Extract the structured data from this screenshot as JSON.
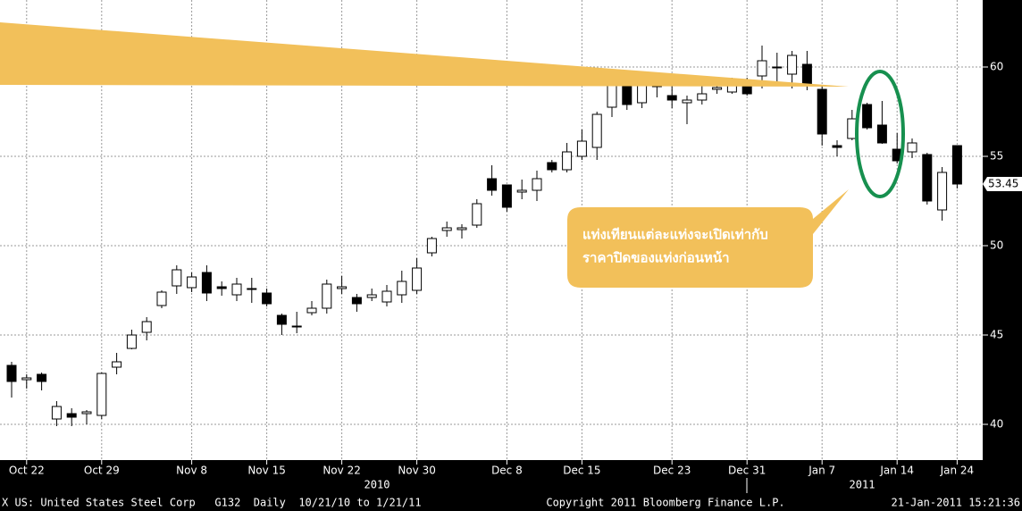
{
  "chart_data": {
    "type": "candlestick",
    "categories": [
      null,
      "Oct 22",
      null,
      null,
      null,
      null,
      "Oct 29",
      null,
      null,
      null,
      null,
      null,
      "Nov 8",
      null,
      null,
      null,
      null,
      "Nov 15",
      null,
      null,
      null,
      null,
      "Nov 22",
      null,
      null,
      null,
      null,
      "Nov 30",
      null,
      null,
      null,
      null,
      null,
      "Dec 8",
      null,
      null,
      null,
      null,
      "Dec 15",
      null,
      null,
      null,
      null,
      null,
      "Dec 23",
      null,
      null,
      null,
      null,
      "Dec 31",
      null,
      null,
      null,
      null,
      "Jan 7",
      null,
      null,
      null,
      null,
      "Jan 14",
      null,
      null,
      null,
      "Jan 24"
    ],
    "open": [
      43.3,
      42.5,
      42.8,
      40.3,
      40.6,
      40.6,
      40.5,
      43.2,
      44.25,
      45.15,
      46.65,
      47.75,
      47.65,
      48.5,
      47.7,
      47.25,
      47.6,
      47.35,
      46.1,
      45.5,
      46.25,
      46.5,
      47.6,
      47.1,
      47.1,
      46.85,
      47.25,
      47.5,
      49.6,
      50.85,
      50.9,
      51.15,
      53.75,
      53.4,
      53.0,
      53.1,
      54.65,
      54.25,
      55.0,
      55.5,
      57.75,
      59.15,
      58.0,
      58.9,
      58.4,
      58.0,
      58.15,
      58.75,
      58.6,
      59.15,
      59.5,
      60.0,
      59.6,
      60.15,
      58.75,
      55.6,
      56.0,
      57.9,
      56.75,
      55.4,
      55.25,
      55.1,
      52.0,
      55.6
    ],
    "high": [
      43.5,
      42.8,
      42.9,
      41.3,
      40.9,
      40.8,
      42.9,
      44.0,
      45.3,
      46.0,
      47.5,
      48.9,
      48.5,
      48.9,
      48.0,
      48.2,
      48.2,
      47.6,
      46.2,
      46.3,
      46.9,
      48.1,
      48.3,
      47.3,
      47.6,
      47.8,
      48.6,
      49.3,
      50.5,
      51.35,
      51.2,
      52.6,
      54.5,
      53.4,
      53.7,
      54.2,
      54.8,
      55.75,
      56.5,
      57.5,
      59.2,
      59.4,
      59.3,
      59.3,
      59.0,
      58.4,
      59.0,
      59.2,
      59.4,
      59.4,
      61.2,
      60.8,
      60.9,
      60.9,
      59.0,
      55.9,
      57.6,
      58.0,
      58.1,
      56.3,
      56.0,
      55.2,
      54.4,
      55.6
    ],
    "low": [
      41.5,
      42.0,
      41.9,
      39.9,
      39.9,
      40.0,
      40.3,
      42.8,
      44.2,
      44.7,
      46.5,
      47.3,
      47.4,
      46.9,
      47.2,
      46.9,
      46.8,
      46.6,
      45.0,
      45.1,
      46.1,
      46.2,
      47.3,
      46.3,
      46.9,
      46.6,
      46.8,
      47.3,
      49.4,
      50.5,
      50.4,
      51.0,
      52.8,
      51.9,
      52.6,
      52.5,
      54.1,
      54.1,
      54.8,
      54.8,
      57.2,
      57.6,
      57.7,
      58.3,
      57.7,
      56.8,
      57.9,
      58.5,
      58.5,
      58.4,
      58.8,
      59.0,
      58.8,
      58.7,
      55.6,
      55.0,
      55.9,
      56.5,
      55.7,
      54.6,
      54.9,
      52.3,
      51.4,
      53.2
    ],
    "close": [
      42.4,
      42.6,
      42.4,
      41.0,
      40.4,
      40.7,
      42.85,
      43.5,
      45.0,
      45.75,
      47.4,
      48.65,
      48.25,
      47.35,
      47.6,
      47.85,
      47.6,
      46.75,
      45.6,
      45.5,
      46.5,
      47.85,
      47.7,
      46.75,
      47.25,
      47.45,
      48.0,
      48.75,
      50.4,
      51.0,
      51.0,
      52.35,
      53.1,
      52.15,
      53.1,
      53.75,
      54.25,
      55.25,
      55.85,
      57.35,
      59.0,
      57.9,
      59.0,
      59.0,
      58.15,
      58.15,
      58.5,
      58.85,
      59.1,
      58.5,
      60.35,
      60.0,
      60.65,
      59.0,
      56.25,
      55.5,
      57.1,
      56.6,
      55.75,
      54.75,
      55.75,
      52.5,
      54.1,
      53.45
    ],
    "up_color": "#ffffff",
    "down_color": "#000000",
    "last_price": 53.45,
    "ylim": [
      38,
      63.75
    ],
    "yticks": [
      40,
      45,
      50,
      55,
      60
    ],
    "grid": true,
    "year_labels": [
      "2010",
      "2011"
    ],
    "annotation": [
      "แท่งเทียนแต่ละแท่งจะเปิดเท่ากับ",
      "ราคาปิดของแท่งก่อนหน้า"
    ],
    "footer": {
      "left": "X US: United States Steel Corp   G132  Daily  10/21/10 to 1/21/11",
      "center": "Copyright 2011 Bloomberg Finance L.P.",
      "right": "21-Jan-2011 15:21:36"
    }
  }
}
